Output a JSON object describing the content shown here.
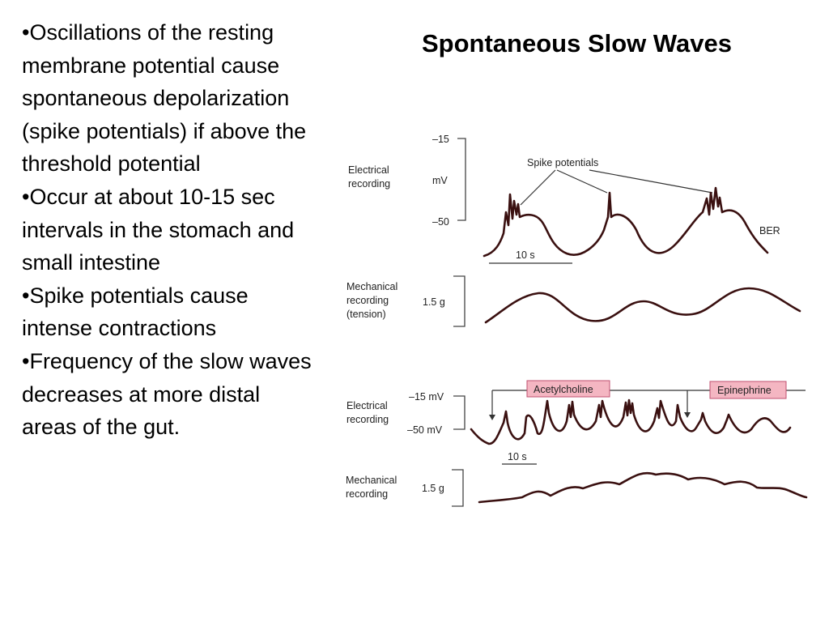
{
  "slide": {
    "title": "Spontaneous Slow Waves",
    "bullets": [
      "•Oscillations of the resting membrane potential cause spontaneous depolarization (spike potentials) if above the threshold potential",
      "•Occur at about 10-15 sec intervals in the stomach and small intestine",
      "•Spike potentials cause intense contractions",
      "•Frequency of the slow waves decreases at more distal areas of the gut."
    ]
  },
  "figure_top": {
    "electrical_label": [
      "Electrical",
      "recording"
    ],
    "scale_top": "–15",
    "scale_unit": "mV",
    "scale_bottom": "–50",
    "spike_label": "Spike potentials",
    "ber_label": "BER",
    "time_label": "10 s",
    "mechanical_label": [
      "Mechanical",
      "recording",
      "(tension)"
    ],
    "force_scale": "1.5 g"
  },
  "figure_bottom": {
    "electrical_label": [
      "Electrical",
      "recording"
    ],
    "scale_top": "–15 mV",
    "scale_bottom": "–50 mV",
    "acetylcholine_label": "Acetylcholine",
    "epinephrine_label": "Epinephrine",
    "time_label": "10 s",
    "mechanical_label": [
      "Mechanical",
      "recording"
    ],
    "force_scale": "1.5 g"
  },
  "colors": {
    "trace": "#3a1010",
    "label_box_fill": "#f4b6c2",
    "label_box_border": "#c05070"
  }
}
